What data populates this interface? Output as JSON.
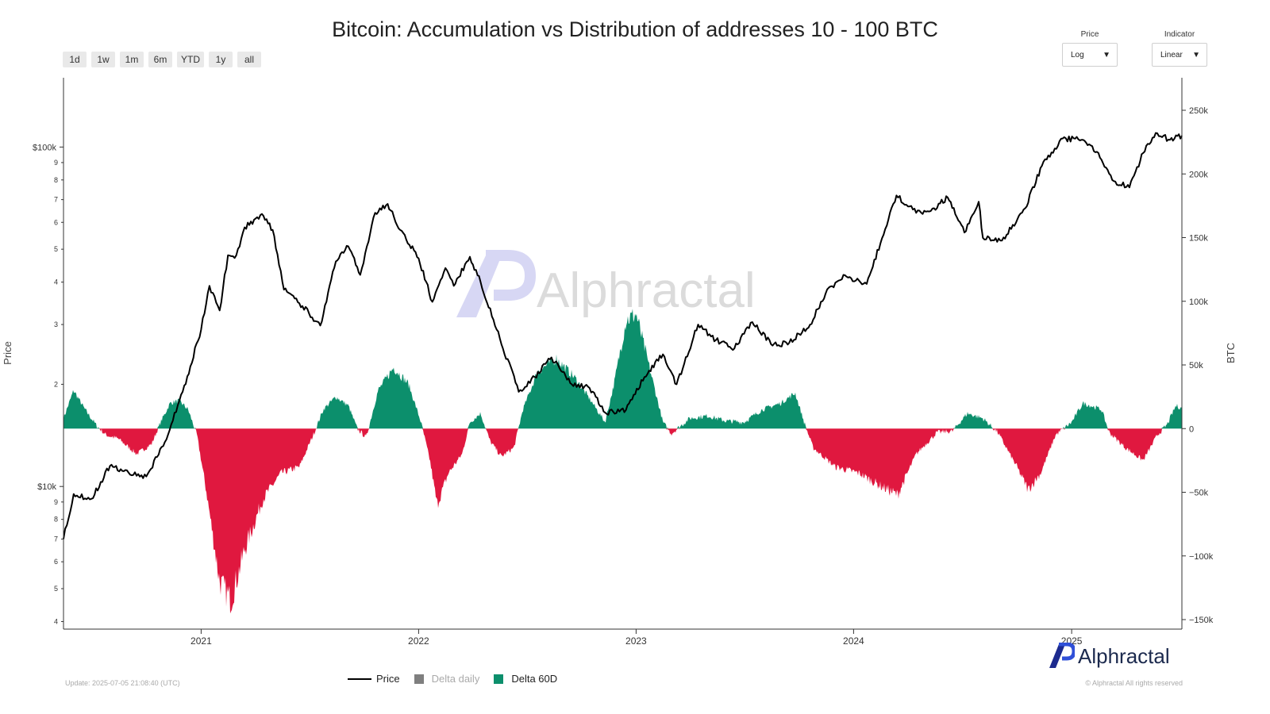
{
  "title": "Bitcoin: Accumulation vs Distribution of addresses 10 - 100 BTC",
  "range_buttons": [
    "1d",
    "1w",
    "1m",
    "6m",
    "YTD",
    "1y",
    "all"
  ],
  "price_select": {
    "label": "Price",
    "value": "Log"
  },
  "indicator_select": {
    "label": "Indicator",
    "value": "Linear"
  },
  "watermark": "Alphractal",
  "brand": "Alphractal",
  "update_text": "Update: 2025-07-05 21:08:40 (UTC)",
  "copyright": "© Alphractal All rights reserved",
  "legend": [
    {
      "name": "Price",
      "color": "#000000"
    },
    {
      "name": "Delta daily",
      "color": "#7f7f7f"
    },
    {
      "name": "Delta 60D",
      "color": "#0c8f6c"
    }
  ],
  "chart_data": {
    "type": "line",
    "x_range": [
      "2020-05-15",
      "2025-07-05"
    ],
    "x_ticks": [
      "2021",
      "2022",
      "2023",
      "2024",
      "2025"
    ],
    "y_left": {
      "label": "Price",
      "scale": "log",
      "range": [
        3800,
        160000
      ],
      "major_ticks": [
        {
          "value": 10000,
          "label": "$10k"
        },
        {
          "value": 100000,
          "label": "$100k"
        }
      ],
      "minor_ticks": [
        4,
        5,
        6,
        7,
        8,
        9,
        2,
        3
      ]
    },
    "y_right": {
      "label": "BTC",
      "scale": "linear",
      "range": [
        -150000,
        250000
      ],
      "ticks": [
        {
          "value": 250000,
          "label": "250k"
        },
        {
          "value": 200000,
          "label": "200k"
        },
        {
          "value": 150000,
          "label": "150k"
        },
        {
          "value": 100000,
          "label": "100k"
        },
        {
          "value": 50000,
          "label": "50k"
        },
        {
          "value": 0,
          "label": "0"
        },
        {
          "value": -50000,
          "label": "−50k"
        },
        {
          "value": -100000,
          "label": "−100k"
        },
        {
          "value": -150000,
          "label": "−150k"
        }
      ]
    },
    "colors": {
      "price": "#000000",
      "positive": "#0c8f6c",
      "negative": "#e0183f"
    },
    "series": [
      {
        "name": "Price",
        "points": [
          [
            "2020-05-15",
            7000
          ],
          [
            "2020-06-01",
            9500
          ],
          [
            "2020-07-01",
            9200
          ],
          [
            "2020-08-01",
            11500
          ],
          [
            "2020-09-01",
            11000
          ],
          [
            "2020-10-01",
            10700
          ],
          [
            "2020-11-01",
            13500
          ],
          [
            "2020-12-01",
            19000
          ],
          [
            "2021-01-01",
            29000
          ],
          [
            "2021-01-15",
            39000
          ],
          [
            "2021-02-01",
            33000
          ],
          [
            "2021-02-15",
            48000
          ],
          [
            "2021-03-01",
            48000
          ],
          [
            "2021-03-15",
            58000
          ],
          [
            "2021-04-13",
            63500
          ],
          [
            "2021-05-01",
            57000
          ],
          [
            "2021-05-20",
            38000
          ],
          [
            "2021-06-20",
            34000
          ],
          [
            "2021-07-20",
            29800
          ],
          [
            "2021-08-15",
            46000
          ],
          [
            "2021-09-05",
            51000
          ],
          [
            "2021-09-25",
            42000
          ],
          [
            "2021-10-20",
            64000
          ],
          [
            "2021-11-10",
            68000
          ],
          [
            "2021-12-01",
            57000
          ],
          [
            "2022-01-01",
            47000
          ],
          [
            "2022-01-24",
            35000
          ],
          [
            "2022-02-15",
            44000
          ],
          [
            "2022-03-01",
            39000
          ],
          [
            "2022-03-28",
            47500
          ],
          [
            "2022-04-15",
            40000
          ],
          [
            "2022-05-12",
            29000
          ],
          [
            "2022-06-18",
            19000
          ],
          [
            "2022-07-15",
            21000
          ],
          [
            "2022-08-12",
            24000
          ],
          [
            "2022-09-15",
            20000
          ],
          [
            "2022-10-15",
            19500
          ],
          [
            "2022-11-10",
            16500
          ],
          [
            "2022-12-15",
            16800
          ],
          [
            "2023-01-15",
            21000
          ],
          [
            "2023-02-15",
            24500
          ],
          [
            "2023-03-10",
            20000
          ],
          [
            "2023-04-15",
            30000
          ],
          [
            "2023-05-15",
            27000
          ],
          [
            "2023-06-15",
            25500
          ],
          [
            "2023-07-15",
            30500
          ],
          [
            "2023-08-18",
            26000
          ],
          [
            "2023-09-15",
            26500
          ],
          [
            "2023-10-20",
            30000
          ],
          [
            "2023-11-15",
            37000
          ],
          [
            "2023-12-15",
            42000
          ],
          [
            "2024-01-23",
            39500
          ],
          [
            "2024-02-15",
            52000
          ],
          [
            "2024-03-13",
            72000
          ],
          [
            "2024-04-15",
            64000
          ],
          [
            "2024-05-15",
            66000
          ],
          [
            "2024-06-07",
            71000
          ],
          [
            "2024-07-05",
            56000
          ],
          [
            "2024-07-29",
            69000
          ],
          [
            "2024-08-05",
            54000
          ],
          [
            "2024-09-06",
            53000
          ],
          [
            "2024-10-15",
            66000
          ],
          [
            "2024-11-12",
            88000
          ],
          [
            "2024-12-17",
            106000
          ],
          [
            "2025-01-20",
            105000
          ],
          [
            "2025-02-15",
            96000
          ],
          [
            "2025-03-10",
            80000
          ],
          [
            "2025-04-08",
            76000
          ],
          [
            "2025-05-01",
            96000
          ],
          [
            "2025-05-22",
            110000
          ],
          [
            "2025-06-15",
            105000
          ],
          [
            "2025-07-05",
            108000
          ]
        ]
      },
      {
        "name": "Delta 60D",
        "points": [
          [
            "2020-05-15",
            8000
          ],
          [
            "2020-06-01",
            30000
          ],
          [
            "2020-06-20",
            15000
          ],
          [
            "2020-07-10",
            2000
          ],
          [
            "2020-07-25",
            -5000
          ],
          [
            "2020-08-15",
            -8000
          ],
          [
            "2020-09-15",
            -20000
          ],
          [
            "2020-10-10",
            -12000
          ],
          [
            "2020-10-25",
            5000
          ],
          [
            "2020-11-10",
            20000
          ],
          [
            "2020-11-25",
            22000
          ],
          [
            "2020-12-10",
            15000
          ],
          [
            "2020-12-25",
            -5000
          ],
          [
            "2021-01-10",
            -50000
          ],
          [
            "2021-02-01",
            -120000
          ],
          [
            "2021-02-20",
            -135000
          ],
          [
            "2021-03-15",
            -95000
          ],
          [
            "2021-04-15",
            -55000
          ],
          [
            "2021-05-15",
            -35000
          ],
          [
            "2021-06-15",
            -30000
          ],
          [
            "2021-07-10",
            -3000
          ],
          [
            "2021-07-25",
            15000
          ],
          [
            "2021-08-15",
            25000
          ],
          [
            "2021-09-05",
            18000
          ],
          [
            "2021-09-20",
            0
          ],
          [
            "2021-10-05",
            -7000
          ],
          [
            "2021-10-25",
            30000
          ],
          [
            "2021-11-20",
            48000
          ],
          [
            "2021-12-15",
            35000
          ],
          [
            "2022-01-05",
            5000
          ],
          [
            "2022-01-20",
            -25000
          ],
          [
            "2022-02-01",
            -60000
          ],
          [
            "2022-02-20",
            -35000
          ],
          [
            "2022-03-15",
            -20000
          ],
          [
            "2022-03-28",
            5000
          ],
          [
            "2022-04-15",
            12000
          ],
          [
            "2022-05-01",
            -10000
          ],
          [
            "2022-05-20",
            -22000
          ],
          [
            "2022-06-10",
            -15000
          ],
          [
            "2022-06-25",
            15000
          ],
          [
            "2022-07-20",
            45000
          ],
          [
            "2022-08-20",
            55000
          ],
          [
            "2022-09-20",
            40000
          ],
          [
            "2022-10-20",
            20000
          ],
          [
            "2022-11-10",
            5000
          ],
          [
            "2022-11-25",
            35000
          ],
          [
            "2022-12-15",
            85000
          ],
          [
            "2023-01-01",
            90000
          ],
          [
            "2023-01-25",
            45000
          ],
          [
            "2023-02-15",
            5000
          ],
          [
            "2023-03-01",
            -4000
          ],
          [
            "2023-04-01",
            8000
          ],
          [
            "2023-05-01",
            10000
          ],
          [
            "2023-06-01",
            6000
          ],
          [
            "2023-07-01",
            5000
          ],
          [
            "2023-08-01",
            15000
          ],
          [
            "2023-09-01",
            20000
          ],
          [
            "2023-09-25",
            28000
          ],
          [
            "2023-10-10",
            5000
          ],
          [
            "2023-10-25",
            -15000
          ],
          [
            "2023-12-01",
            -30000
          ],
          [
            "2024-01-10",
            -35000
          ],
          [
            "2024-02-15",
            -45000
          ],
          [
            "2024-03-15",
            -52000
          ],
          [
            "2024-04-15",
            -20000
          ],
          [
            "2024-05-20",
            -3000
          ],
          [
            "2024-06-15",
            -2000
          ],
          [
            "2024-07-10",
            12000
          ],
          [
            "2024-08-05",
            8000
          ],
          [
            "2024-08-30",
            -3000
          ],
          [
            "2024-10-01",
            -30000
          ],
          [
            "2024-10-20",
            -48000
          ],
          [
            "2024-11-10",
            -35000
          ],
          [
            "2024-12-05",
            -5000
          ],
          [
            "2025-01-01",
            5000
          ],
          [
            "2025-01-20",
            20000
          ],
          [
            "2025-02-20",
            15000
          ],
          [
            "2025-03-05",
            -3000
          ],
          [
            "2025-04-01",
            -15000
          ],
          [
            "2025-05-01",
            -25000
          ],
          [
            "2025-05-25",
            -5000
          ],
          [
            "2025-06-10",
            3000
          ],
          [
            "2025-06-25",
            18000
          ],
          [
            "2025-07-05",
            16000
          ]
        ]
      }
    ]
  }
}
